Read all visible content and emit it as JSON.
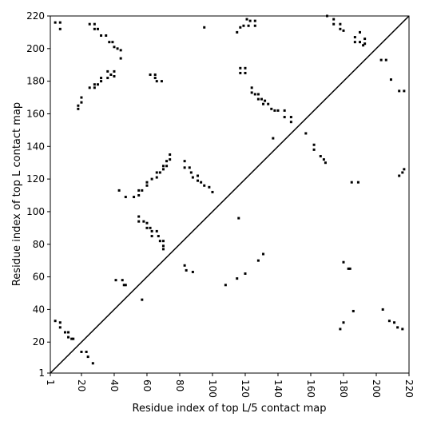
{
  "chart_data": {
    "type": "scatter",
    "xlabel": "Residue index of top L/5 contact map",
    "ylabel": "Residue index of top L contact map",
    "xlim": [
      1,
      220
    ],
    "ylim": [
      1,
      220
    ],
    "xticks": [
      1,
      20,
      40,
      60,
      80,
      100,
      120,
      140,
      160,
      180,
      200,
      220
    ],
    "yticks": [
      1,
      20,
      40,
      60,
      80,
      100,
      120,
      140,
      160,
      180,
      200,
      220
    ],
    "diagonal": true,
    "series": [
      {
        "color": "#000000",
        "x": [
          4,
          7,
          7,
          25,
          28,
          28,
          30,
          32,
          35,
          37,
          39,
          40,
          42,
          44,
          44,
          95,
          28,
          30,
          32,
          32,
          36,
          36,
          38,
          40,
          40,
          18,
          18,
          20,
          20,
          25,
          28,
          62,
          65,
          65,
          66,
          69,
          43,
          47,
          52,
          55,
          55,
          57,
          60,
          60,
          63,
          66,
          66,
          68,
          70,
          70,
          72,
          72,
          74,
          74,
          83,
          83,
          86,
          87,
          88,
          91,
          91,
          93,
          95,
          98,
          100,
          55,
          55,
          58,
          60,
          60,
          62,
          63,
          63,
          66,
          67,
          68,
          70,
          70,
          70,
          83,
          84,
          88,
          41,
          45,
          46,
          47,
          57,
          108,
          115,
          120,
          128,
          131,
          116,
          115,
          117,
          119,
          121,
          123,
          122,
          126,
          126,
          117,
          117,
          120,
          120,
          124,
          124,
          126,
          128,
          128,
          130,
          132,
          131,
          134,
          136,
          138,
          140,
          144,
          144,
          148,
          148,
          137,
          157,
          162,
          162,
          166,
          168,
          169,
          170,
          174,
          174,
          178,
          180,
          178,
          187,
          187,
          190,
          190,
          193,
          193,
          192,
          203,
          206,
          209,
          214,
          217,
          214,
          216,
          217,
          185,
          189,
          180,
          183,
          184,
          178,
          180,
          186,
          204,
          208,
          211,
          213,
          216,
          4,
          7,
          7,
          10,
          12,
          12,
          14,
          15,
          20,
          23,
          24,
          27
        ],
        "values": [
          216,
          216,
          212,
          215,
          215,
          212,
          212,
          208,
          208,
          204,
          204,
          201,
          200,
          199,
          194,
          213,
          178,
          178,
          180,
          182,
          182,
          186,
          184,
          183,
          186,
          163,
          165,
          167,
          170,
          176,
          176,
          184,
          184,
          182,
          180,
          180,
          113,
          109,
          109,
          110,
          113,
          113,
          116,
          118,
          120,
          121,
          124,
          124,
          126,
          128,
          128,
          131,
          132,
          135,
          131,
          127,
          127,
          124,
          121,
          122,
          119,
          118,
          116,
          115,
          112,
          97,
          94,
          94,
          93,
          90,
          90,
          88,
          85,
          88,
          85,
          82,
          82,
          79,
          77,
          67,
          64,
          63,
          58,
          58,
          55,
          55,
          46,
          55,
          59,
          62,
          70,
          74,
          96,
          210,
          213,
          214,
          218,
          217,
          214,
          217,
          214,
          185,
          188,
          188,
          185,
          176,
          173,
          172,
          172,
          169,
          169,
          168,
          166,
          166,
          163,
          162,
          162,
          162,
          158,
          158,
          155,
          145,
          148,
          141,
          138,
          134,
          132,
          130,
          220,
          218,
          215,
          212,
          211,
          215,
          207,
          204,
          204,
          210,
          206,
          203,
          202,
          193,
          193,
          181,
          174,
          174,
          122,
          124,
          126,
          118,
          118,
          69,
          65,
          65,
          28,
          32,
          39,
          40,
          33,
          32,
          29,
          28,
          33,
          32,
          29,
          26,
          26,
          23,
          22,
          22,
          14,
          14,
          11,
          7
        ]
      }
    ]
  }
}
